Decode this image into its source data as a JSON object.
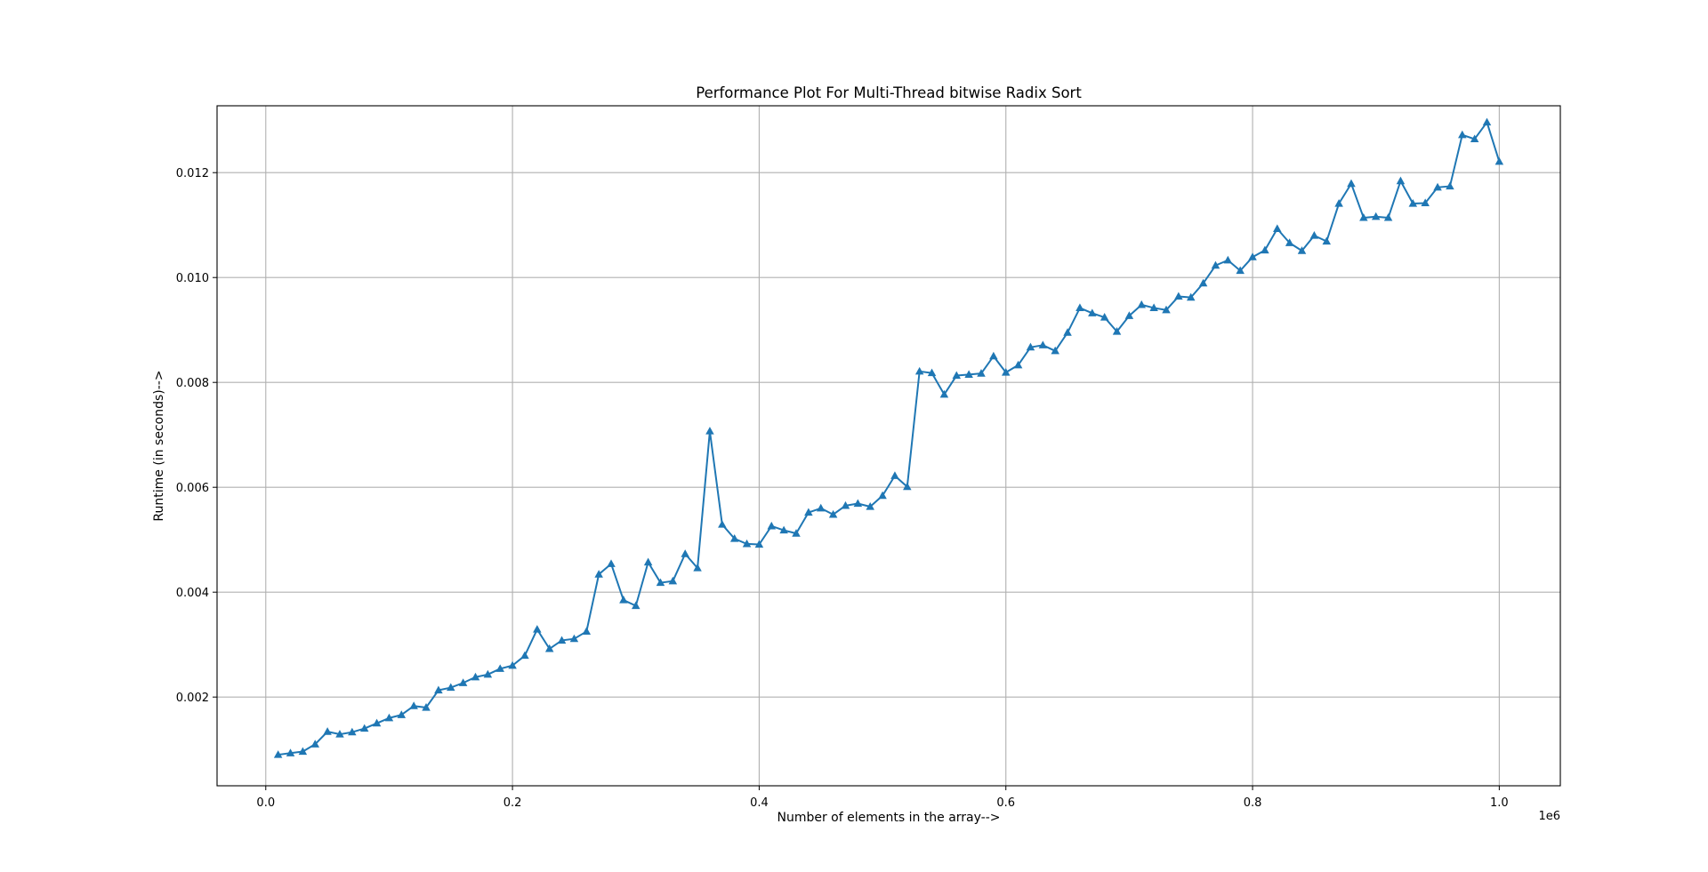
{
  "chart_data": {
    "type": "line",
    "title": "Performance Plot For Multi-Thread bitwise Radix Sort",
    "xlabel": "Number of elements in the array-->",
    "ylabel": "Runtime (in seconds)-->",
    "x_offset_text": "1e6",
    "xlim": [
      -0.0395,
      1.0495
    ],
    "ylim": [
      0.000308,
      0.013275
    ],
    "x_ticks": [
      0.0,
      0.2,
      0.4,
      0.6,
      0.8,
      1.0
    ],
    "x_tick_labels": [
      "0.0",
      "0.2",
      "0.4",
      "0.6",
      "0.8",
      "1.0"
    ],
    "y_ticks": [
      0.002,
      0.004,
      0.006,
      0.008,
      0.01,
      0.012
    ],
    "y_tick_labels": [
      "0.002",
      "0.004",
      "0.006",
      "0.008",
      "0.010",
      "0.012"
    ],
    "grid": true,
    "marker": "triangle-up",
    "color": "#1f77b4",
    "series": [
      {
        "x": [
          0.01,
          0.02,
          0.03,
          0.04,
          0.05,
          0.06,
          0.07,
          0.08,
          0.09,
          0.1,
          0.11,
          0.12,
          0.13,
          0.14,
          0.15,
          0.16,
          0.17,
          0.18,
          0.19,
          0.2,
          0.21,
          0.22,
          0.23,
          0.24,
          0.25,
          0.26,
          0.27,
          0.28,
          0.29,
          0.3,
          0.31,
          0.32,
          0.33,
          0.34,
          0.35,
          0.36,
          0.37,
          0.38,
          0.39,
          0.4,
          0.41,
          0.42,
          0.43,
          0.44,
          0.45,
          0.46,
          0.47,
          0.48,
          0.49,
          0.5,
          0.51,
          0.52,
          0.53,
          0.54,
          0.55,
          0.56,
          0.57,
          0.58,
          0.59,
          0.6,
          0.61,
          0.62,
          0.63,
          0.64,
          0.65,
          0.66,
          0.67,
          0.68,
          0.69,
          0.7,
          0.71,
          0.72,
          0.73,
          0.74,
          0.75,
          0.76,
          0.77,
          0.78,
          0.79,
          0.8,
          0.81,
          0.82,
          0.83,
          0.84,
          0.85,
          0.86,
          0.87,
          0.88,
          0.89,
          0.9,
          0.91,
          0.92,
          0.93,
          0.94,
          0.95,
          0.96,
          0.97,
          0.98,
          0.99,
          1.0
        ],
        "y": [
          0.0009,
          0.00093,
          0.00096,
          0.0011,
          0.00134,
          0.00129,
          0.00133,
          0.0014,
          0.0015,
          0.0016,
          0.00166,
          0.00183,
          0.0018,
          0.00213,
          0.00218,
          0.00227,
          0.00238,
          0.00243,
          0.00254,
          0.0026,
          0.00279,
          0.00329,
          0.00292,
          0.00308,
          0.00311,
          0.00325,
          0.00434,
          0.00454,
          0.00385,
          0.00374,
          0.00457,
          0.00418,
          0.00421,
          0.00473,
          0.00446,
          0.00707,
          0.00529,
          0.00502,
          0.00492,
          0.00491,
          0.00526,
          0.00518,
          0.00512,
          0.00552,
          0.0056,
          0.00548,
          0.00565,
          0.00569,
          0.00563,
          0.00584,
          0.00622,
          0.00601,
          0.00821,
          0.00818,
          0.00777,
          0.00813,
          0.00815,
          0.00817,
          0.0085,
          0.00819,
          0.00833,
          0.00867,
          0.00871,
          0.0086,
          0.00895,
          0.00942,
          0.00932,
          0.00924,
          0.00897,
          0.00927,
          0.00948,
          0.00942,
          0.00938,
          0.00964,
          0.00962,
          0.00989,
          0.01023,
          0.01033,
          0.01013,
          0.01039,
          0.01052,
          0.01093,
          0.01066,
          0.01051,
          0.0108,
          0.01069,
          0.01141,
          0.01179,
          0.01114,
          0.01116,
          0.01114,
          0.01184,
          0.01141,
          0.01142,
          0.01172,
          0.01174,
          0.01272,
          0.01264,
          0.01296,
          0.01221
        ]
      }
    ]
  }
}
